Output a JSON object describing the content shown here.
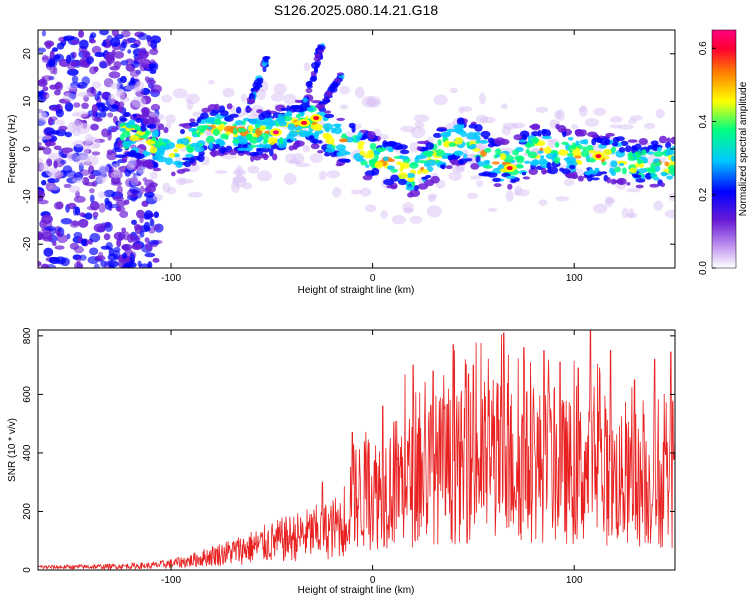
{
  "figure": {
    "title": "S126.2025.080.14.21.G18"
  },
  "chart_data": [
    {
      "type": "heatmap",
      "xlabel": "Height of straight line (km)",
      "ylabel": "Frequency (Hz)",
      "xlim": [
        -166,
        150
      ],
      "ylim": [
        -25,
        25
      ],
      "xticks": [
        -100,
        0,
        100
      ],
      "yticks": [
        -20,
        -10,
        0,
        10,
        20
      ],
      "xtick_labels": [
        "-100",
        "0",
        "100"
      ],
      "ytick_labels": [
        "-20",
        "-10",
        "0",
        "10",
        "20"
      ],
      "grid": false,
      "ridge_frequency": {
        "x": [
          -160,
          -140,
          -120,
          -110,
          -100,
          -90,
          -80,
          -70,
          -60,
          -50,
          -40,
          -30,
          -20,
          -10,
          0,
          10,
          20,
          30,
          40,
          50,
          60,
          70,
          80,
          90,
          100,
          110,
          120,
          130,
          140,
          150
        ],
        "y": [
          3,
          2,
          3,
          1,
          -1,
          1,
          4,
          4,
          3,
          3,
          5,
          6,
          2,
          1,
          -2,
          -3,
          -5,
          -2,
          2,
          1,
          -3,
          -3,
          0,
          0,
          -1,
          -2,
          -2,
          -3,
          -3,
          -3
        ]
      },
      "peaks": [
        {
          "x": -48,
          "y": 3.5,
          "value": 0.62
        },
        {
          "x": -34,
          "y": 5.5,
          "value": 0.6
        },
        {
          "x": -28,
          "y": 6.5,
          "value": 0.58
        },
        {
          "x": 68,
          "y": -4,
          "value": 0.58
        },
        {
          "x": 112,
          "y": -1.5,
          "value": 0.55
        }
      ],
      "colorbar": {
        "label": "Normalized spectral amplitude",
        "range": [
          0,
          0.65
        ],
        "ticks": [
          0.0,
          0.2,
          0.4,
          0.6
        ],
        "tick_labels": [
          "0.0",
          "0.2",
          "0.4",
          "0.6"
        ],
        "colors": [
          "#ffffff",
          "#6a1bd6",
          "#0000ff",
          "#00c8ff",
          "#00ff80",
          "#ffff00",
          "#ff8000",
          "#ff0030",
          "#ff0080"
        ]
      }
    },
    {
      "type": "line",
      "xlabel": "Height of straight line (km)",
      "ylabel": "SNR (10 * v/v)",
      "xlim": [
        -166,
        150
      ],
      "ylim": [
        0,
        820
      ],
      "xticks": [
        -100,
        0,
        100
      ],
      "yticks": [
        0,
        200,
        400,
        600,
        800
      ],
      "xtick_labels": [
        "-100",
        "0",
        "100"
      ],
      "ytick_labels": [
        "0",
        "200",
        "400",
        "600",
        "800"
      ],
      "grid": false,
      "color": "#e82020",
      "series": [
        {
          "x": [
            -166,
            -150,
            -130,
            -110,
            -100,
            -90,
            -80,
            -70,
            -60,
            -50,
            -40,
            -30,
            -20,
            -15,
            -10,
            0,
            10,
            20,
            30,
            40,
            50,
            60,
            70,
            80,
            90,
            100,
            110,
            120,
            130,
            140,
            150
          ],
          "values": [
            10,
            10,
            12,
            15,
            22,
            32,
            48,
            62,
            78,
            95,
            110,
            125,
            140,
            160,
            250,
            260,
            300,
            310,
            350,
            340,
            370,
            380,
            360,
            360,
            350,
            330,
            340,
            310,
            290,
            280,
            280
          ],
          "peaks_x": [
            -25,
            -10,
            5,
            20,
            30,
            40,
            50,
            65,
            75,
            85,
            93,
            102,
            108,
            118,
            130,
            140,
            148
          ],
          "peaks_y": [
            300,
            470,
            560,
            700,
            680,
            770,
            700,
            810,
            760,
            750,
            710,
            690,
            820,
            750,
            650,
            720,
            745
          ]
        }
      ]
    }
  ]
}
